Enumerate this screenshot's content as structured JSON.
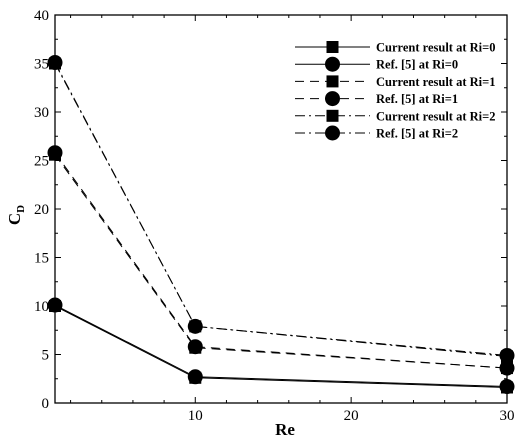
{
  "chart_data": {
    "type": "line",
    "xlabel": "Re",
    "ylabel": "C",
    "ylabel_subscript": "D",
    "xlim": [
      1,
      30
    ],
    "ylim": [
      0,
      40
    ],
    "xticks": [
      10,
      20,
      30
    ],
    "yticks": [
      0,
      5,
      10,
      15,
      20,
      25,
      30,
      35,
      40
    ],
    "grid": false,
    "legend_position": "top-right",
    "series": [
      {
        "name": "Current result at Ri=0",
        "marker": "square",
        "line": "solid",
        "x": [
          1,
          10,
          30
        ],
        "y": [
          10.0,
          2.6,
          1.6
        ]
      },
      {
        "name": "Ref. [5] at Ri=0",
        "marker": "circle",
        "line": "solid",
        "x": [
          1,
          10,
          30
        ],
        "y": [
          10.1,
          2.7,
          1.7
        ]
      },
      {
        "name": "Current result at Ri=1",
        "marker": "square",
        "line": "dashed",
        "x": [
          1,
          10,
          30
        ],
        "y": [
          25.6,
          5.7,
          3.6
        ]
      },
      {
        "name": "Ref. [5] at Ri=1",
        "marker": "circle",
        "line": "dashed",
        "x": [
          1,
          10,
          30
        ],
        "y": [
          25.8,
          5.8,
          3.6
        ]
      },
      {
        "name": "Current result at Ri=2",
        "marker": "square",
        "line": "dashdot",
        "x": [
          1,
          10,
          30
        ],
        "y": [
          35.0,
          7.9,
          4.8
        ]
      },
      {
        "name": "Ref. [5] at Ri=2",
        "marker": "circle",
        "line": "dashdot",
        "x": [
          1,
          10,
          30
        ],
        "y": [
          35.1,
          7.9,
          4.9
        ]
      }
    ]
  }
}
